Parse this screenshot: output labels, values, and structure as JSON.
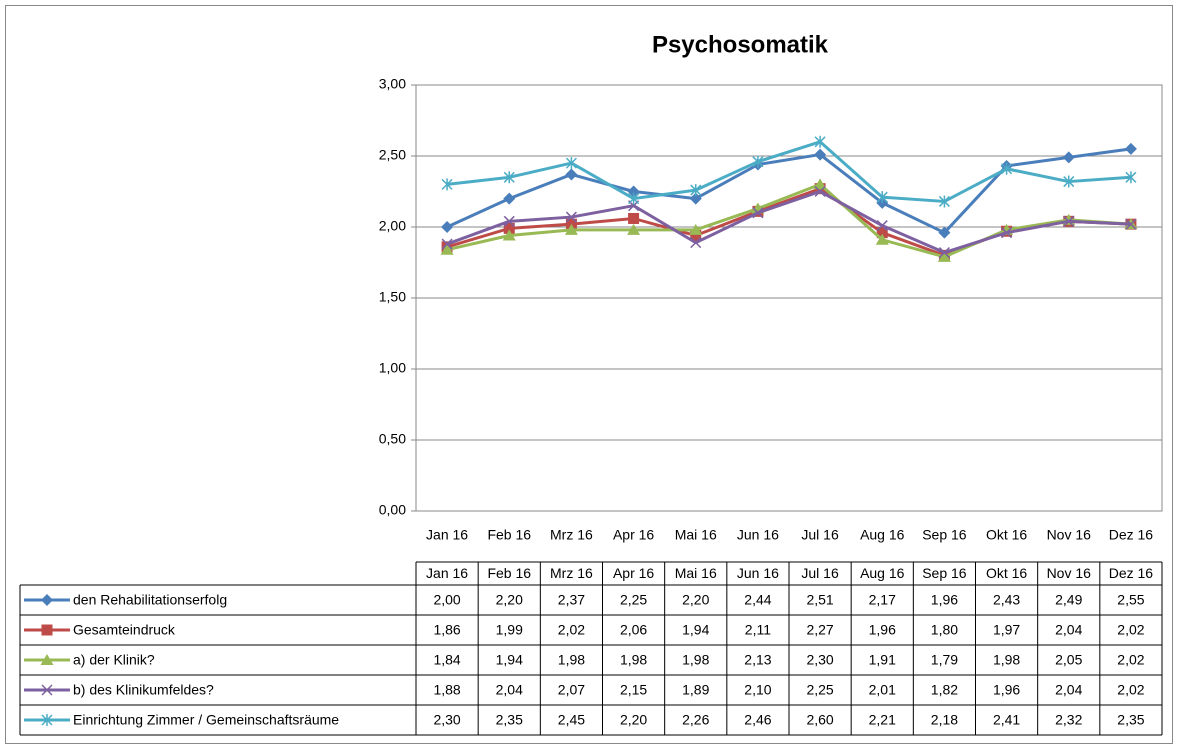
{
  "chart_data": {
    "type": "line",
    "title": "Psychosomatik",
    "categories": [
      "Jan 16",
      "Feb 16",
      "Mrz 16",
      "Apr 16",
      "Mai 16",
      "Jun 16",
      "Jul 16",
      "Aug 16",
      "Sep 16",
      "Okt 16",
      "Nov 16",
      "Dez 16"
    ],
    "ylim": [
      0,
      3
    ],
    "yticks": [
      {
        "value": 0,
        "label": "0,00"
      },
      {
        "value": 0.5,
        "label": "0,50"
      },
      {
        "value": 1,
        "label": "1,00"
      },
      {
        "value": 1.5,
        "label": "1,50"
      },
      {
        "value": 2,
        "label": "2,00"
      },
      {
        "value": 2.5,
        "label": "2,50"
      },
      {
        "value": 3,
        "label": "3,00"
      }
    ],
    "grid": true,
    "series": [
      {
        "name": "den Rehabilitationserfolg",
        "color": "#4a7ebb",
        "marker": "diamond",
        "values": [
          2.0,
          2.2,
          2.37,
          2.25,
          2.2,
          2.44,
          2.51,
          2.17,
          1.96,
          2.43,
          2.49,
          2.55
        ],
        "value_labels": [
          "2,00",
          "2,20",
          "2,37",
          "2,25",
          "2,20",
          "2,44",
          "2,51",
          "2,17",
          "1,96",
          "2,43",
          "2,49",
          "2,55"
        ]
      },
      {
        "name": "Gesamteindruck",
        "color": "#be4b48",
        "marker": "square",
        "values": [
          1.86,
          1.99,
          2.02,
          2.06,
          1.94,
          2.11,
          2.27,
          1.96,
          1.8,
          1.97,
          2.04,
          2.02
        ],
        "value_labels": [
          "1,86",
          "1,99",
          "2,02",
          "2,06",
          "1,94",
          "2,11",
          "2,27",
          "1,96",
          "1,80",
          "1,97",
          "2,04",
          "2,02"
        ]
      },
      {
        "name": "a) der Klinik?",
        "color": "#98b954",
        "marker": "triangle",
        "values": [
          1.84,
          1.94,
          1.98,
          1.98,
          1.98,
          2.13,
          2.3,
          1.91,
          1.79,
          1.98,
          2.05,
          2.02
        ],
        "value_labels": [
          "1,84",
          "1,94",
          "1,98",
          "1,98",
          "1,98",
          "2,13",
          "2,30",
          "1,91",
          "1,79",
          "1,98",
          "2,05",
          "2,02"
        ]
      },
      {
        "name": "b) des Klinikumfeldes?",
        "color": "#7d60a0",
        "marker": "x",
        "values": [
          1.88,
          2.04,
          2.07,
          2.15,
          1.89,
          2.1,
          2.25,
          2.01,
          1.82,
          1.96,
          2.04,
          2.02
        ],
        "value_labels": [
          "1,88",
          "2,04",
          "2,07",
          "2,15",
          "1,89",
          "2,10",
          "2,25",
          "2,01",
          "1,82",
          "1,96",
          "2,04",
          "2,02"
        ]
      },
      {
        "name": "Einrichtung Zimmer / Gemeinschaftsräume",
        "color": "#4bacc6",
        "marker": "star",
        "values": [
          2.3,
          2.35,
          2.45,
          2.2,
          2.26,
          2.46,
          2.6,
          2.21,
          2.18,
          2.41,
          2.32,
          2.35
        ],
        "value_labels": [
          "2,30",
          "2,35",
          "2,45",
          "2,20",
          "2,26",
          "2,46",
          "2,60",
          "2,21",
          "2,18",
          "2,41",
          "2,32",
          "2,35"
        ]
      }
    ]
  }
}
